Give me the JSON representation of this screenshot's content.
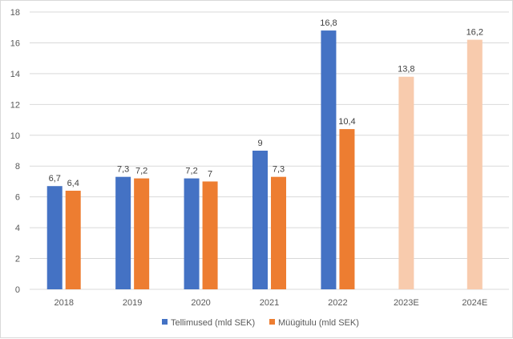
{
  "chart_data": {
    "type": "bar",
    "title": "",
    "xlabel": "",
    "ylabel": "",
    "categories": [
      "2018",
      "2019",
      "2020",
      "2021",
      "2022",
      "2023E",
      "2024E"
    ],
    "ylim": [
      0,
      18
    ],
    "yticks": [
      0,
      2,
      4,
      6,
      8,
      10,
      12,
      14,
      16,
      18
    ],
    "grid": true,
    "legend_position": "bottom",
    "series": [
      {
        "name": "Tellimused (mld SEK)",
        "color": "#4472c4",
        "values": [
          6.7,
          7.3,
          7.2,
          9,
          16.8,
          null,
          null
        ],
        "labels": [
          "6,7",
          "7,3",
          "7,2",
          "9",
          "16,8",
          "",
          ""
        ]
      },
      {
        "name": "Müügitulu (mld SEK)",
        "color": "#ed7d31",
        "estimate_color": "#f8cbad",
        "values": [
          6.4,
          7.2,
          7,
          7.3,
          10.4,
          13.8,
          16.2
        ],
        "labels": [
          "6,4",
          "7,2",
          "7",
          "7,3",
          "10,4",
          "13,8",
          "16,2"
        ]
      }
    ]
  }
}
